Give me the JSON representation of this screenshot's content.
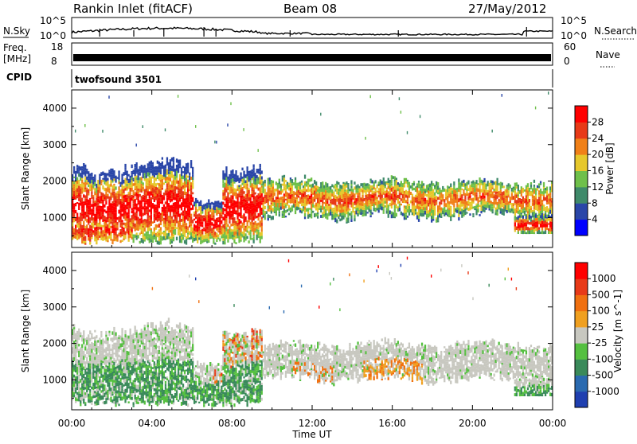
{
  "header": {
    "station": "Rankin Inlet (fitACF)",
    "beam": "Beam 08",
    "date": "27/May/2012"
  },
  "strips": {
    "nsky_label": "N.Sky",
    "nsky_ticks": [
      "10^5",
      "10^0"
    ],
    "nsearch_label": "N.Search",
    "nsearch_ticks": [
      "10^5",
      "10^0"
    ],
    "freq_label": "Freq.",
    "freq_unit": "[MHz]",
    "freq_ticks": [
      "18",
      "8"
    ],
    "nave_label": "Nave",
    "nave_ticks": [
      "60",
      "0"
    ],
    "cpid_label": "CPID",
    "cpid_value": "twofsound 3501"
  },
  "power_colorbar": {
    "label": "Power [dB]",
    "ticks": [
      "28",
      "24",
      "20",
      "16",
      "12",
      "8",
      "4"
    ],
    "colors": [
      "#0000ff",
      "#2a46a8",
      "#3f8a6a",
      "#6fc04a",
      "#e6c82c",
      "#f08018",
      "#e83a18",
      "#ff0000"
    ]
  },
  "velocity_colorbar": {
    "label": "Velocity [m s^-1]",
    "ticks": [
      "1000",
      "500",
      "100",
      "25",
      "-25",
      "-100",
      "-500",
      "-1000"
    ],
    "colors": [
      "#1f3fb0",
      "#2a6ab0",
      "#3a8a5a",
      "#55c040",
      "#c8c8c0",
      "#f0a020",
      "#f07010",
      "#e83a18",
      "#ff0000"
    ]
  },
  "axes": {
    "range_label": "Slant Range [km]",
    "range_ticks": [
      "4000",
      "3000",
      "2000",
      "1000"
    ],
    "time_label": "Time UT",
    "time_ticks": [
      "00:00",
      "04:00",
      "08:00",
      "12:00",
      "16:00",
      "20:00",
      "00:00"
    ]
  },
  "chart_data": [
    {
      "type": "heatmap",
      "title": "Power",
      "xlabel": "Time UT",
      "ylabel": "Slant Range [km]",
      "x_range_hours": [
        0,
        24
      ],
      "ylim": [
        180,
        4500
      ],
      "colorbar_label": "Power [dB]",
      "colorbar_ticks": [
        28,
        24,
        20,
        16,
        12,
        8,
        4
      ]
    },
    {
      "type": "heatmap",
      "title": "Velocity",
      "xlabel": "Time UT",
      "ylabel": "Slant Range [km]",
      "x_range_hours": [
        0,
        24
      ],
      "ylim": [
        180,
        4500
      ],
      "colorbar_label": "Velocity [m s^-1]",
      "colorbar_ticks": [
        1000,
        500,
        100,
        25,
        -25,
        -100,
        -500,
        -1000
      ]
    }
  ]
}
